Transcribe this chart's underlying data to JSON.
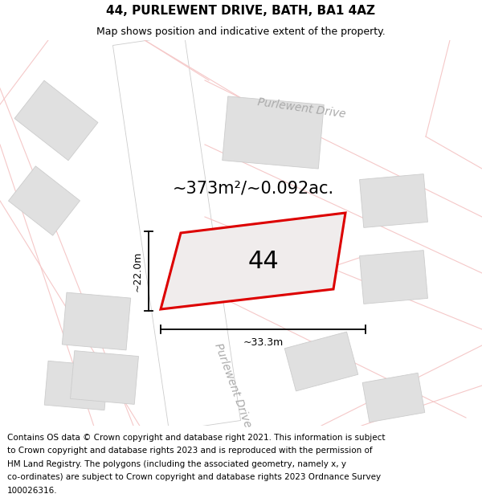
{
  "title": "44, PURLEWENT DRIVE, BATH, BA1 4AZ",
  "subtitle": "Map shows position and indicative extent of the property.",
  "footer_lines": [
    "Contains OS data © Crown copyright and database right 2021. This information is subject",
    "to Crown copyright and database rights 2023 and is reproduced with the permission of",
    "HM Land Registry. The polygons (including the associated geometry, namely x, y",
    "co-ordinates) are subject to Crown copyright and database rights 2023 Ordnance Survey",
    "100026316."
  ],
  "area_label": "~373m²/~0.092ac.",
  "number_label": "44",
  "dim_height": "~22.0m",
  "dim_width": "~33.3m",
  "road_label_top": "Purlewent Drive",
  "road_label_left": "Purlewent Drive",
  "map_bg": "#f7f5f5",
  "road_fill": "#ffffff",
  "road_edge": "#cccccc",
  "block_fill": "#e0e0e0",
  "block_edge": "#cccccc",
  "pink_line": "#f5c8c8",
  "plot_outline_color": "#dd0000",
  "plot_fill": "#f0ecec",
  "dim_color": "#000000",
  "title_fontsize": 11,
  "subtitle_fontsize": 9,
  "footer_fontsize": 7.5,
  "area_fontsize": 15,
  "number_fontsize": 22,
  "road_label_fontsize": 10,
  "dim_fontsize": 9
}
